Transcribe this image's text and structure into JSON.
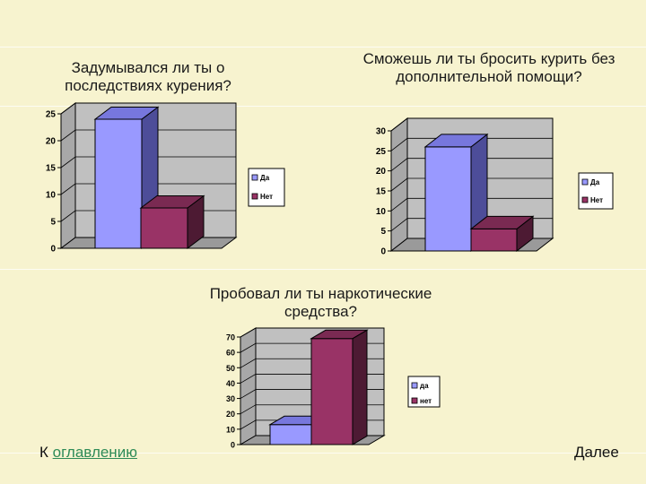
{
  "colors": {
    "background": "#f7f3cf",
    "yes_bar": "#9999ff",
    "no_bar": "#993366",
    "plot_wall": "#c0c0c0",
    "plot_floor": "#9a9a9a"
  },
  "nav": {
    "contents_prefix": "К ",
    "contents_link": "оглавлению",
    "next_label": "Далее"
  },
  "chart_data": [
    {
      "type": "bar",
      "title": "Задумывался ли ты о последствиях курения?",
      "categories": [
        "Да",
        "Нет"
      ],
      "values": [
        24,
        7.5
      ],
      "ylim": [
        0,
        25
      ],
      "yticks": [
        0,
        5,
        10,
        15,
        20,
        25
      ],
      "grid": true,
      "legend": {
        "position": "right",
        "entries": [
          "Да",
          "Нет"
        ]
      },
      "xlabel": "",
      "ylabel": ""
    },
    {
      "type": "bar",
      "title": "Сможешь ли ты бросить курить без дополнительной помощи?",
      "categories": [
        "Да",
        "Нет"
      ],
      "values": [
        26,
        5.5
      ],
      "ylim": [
        0,
        30
      ],
      "yticks": [
        0,
        5,
        10,
        15,
        20,
        25,
        30
      ],
      "grid": true,
      "legend": {
        "position": "right",
        "entries": [
          "Да",
          "Нет"
        ]
      },
      "xlabel": "",
      "ylabel": ""
    },
    {
      "type": "bar",
      "title": "Пробовал ли ты наркотические средства?",
      "categories": [
        "да",
        "нет"
      ],
      "values": [
        13,
        69
      ],
      "ylim": [
        0,
        70
      ],
      "yticks": [
        0,
        10,
        20,
        30,
        40,
        50,
        60,
        70
      ],
      "grid": true,
      "legend": {
        "position": "right",
        "entries": [
          "да",
          "нет"
        ]
      },
      "xlabel": "",
      "ylabel": ""
    }
  ]
}
